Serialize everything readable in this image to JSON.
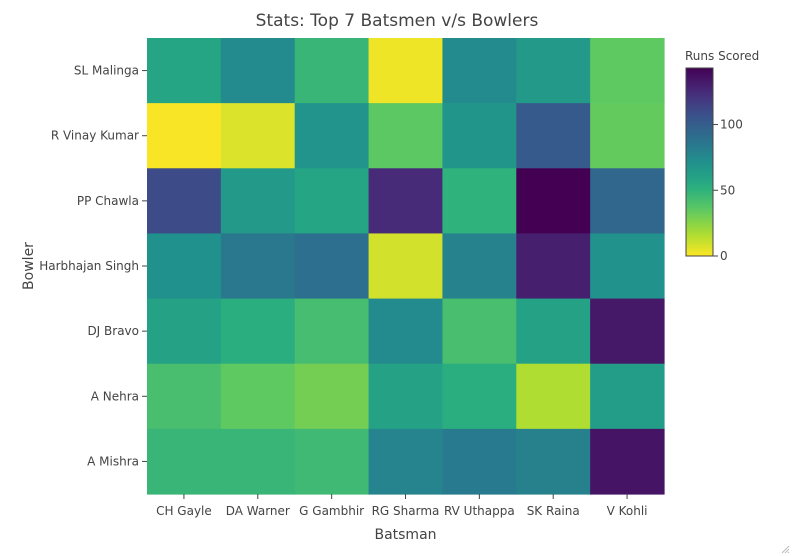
{
  "chart_data": {
    "type": "heatmap",
    "title": "Stats: Top 7 Batsmen v/s Bowlers",
    "xlabel": "Batsman",
    "ylabel": "Bowler",
    "x": [
      "CH Gayle",
      "DA Warner",
      "G Gambhir",
      "RG Sharma",
      "RV Uthappa",
      "SK Raina",
      "V Kohli"
    ],
    "y": [
      "SL Malinga",
      "R Vinay Kumar",
      "PP Chawla",
      "Harbhajan Singh",
      "DJ Bravo",
      "A Nehra",
      "A Mishra"
    ],
    "z": [
      [
        58,
        75,
        47,
        3,
        74,
        65,
        35
      ],
      [
        1,
        7,
        69,
        36,
        68,
        102,
        34
      ],
      [
        110,
        65,
        58,
        125,
        50,
        143,
        95
      ],
      [
        71,
        85,
        90,
        9,
        79,
        130,
        70
      ],
      [
        60,
        52,
        43,
        75,
        42,
        60,
        133
      ],
      [
        42,
        35,
        30,
        60,
        52,
        16,
        64
      ],
      [
        47,
        47,
        45,
        78,
        83,
        80,
        135
      ]
    ],
    "colorbar": {
      "title": "Runs Scored",
      "range": [
        0,
        143
      ],
      "ticks": [
        "0",
        "50",
        "100"
      ],
      "colorscale": "Viridis (reversed)"
    }
  }
}
